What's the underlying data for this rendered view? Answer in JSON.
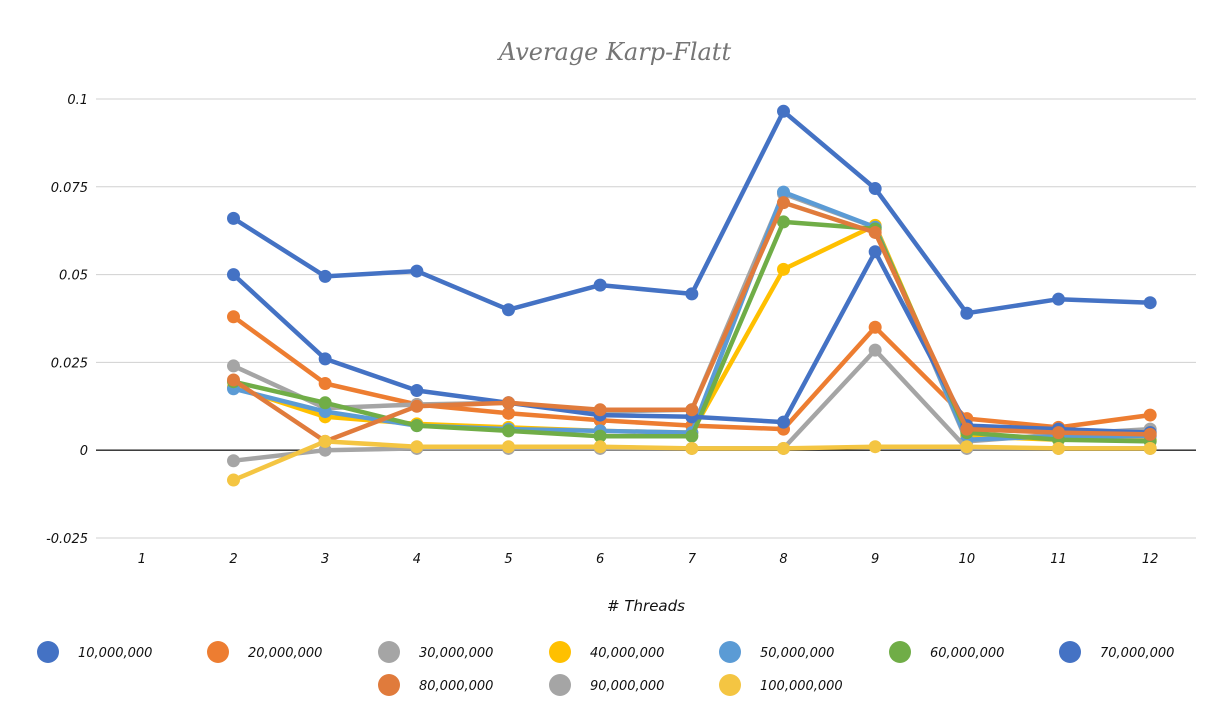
{
  "chart_data": {
    "type": "line",
    "title": "Average Karp-Flatt",
    "xlabel": "# Threads",
    "ylabel": "",
    "categories": [
      "1",
      "2",
      "3",
      "4",
      "5",
      "6",
      "7",
      "8",
      "9",
      "10",
      "11",
      "12"
    ],
    "yticks": [
      "-0.025",
      "0",
      "0.025",
      "0.05",
      "0.075",
      "0.1"
    ],
    "ytick_values": [
      -0.025,
      0,
      0.025,
      0.05,
      0.075,
      0.1
    ],
    "ylim": [
      -0.025,
      0.1
    ],
    "grid": true,
    "legend_position": "bottom",
    "series": [
      {
        "name": "10,000,000",
        "color": "#4472C4",
        "values": [
          null,
          0.066,
          0.0495,
          0.051,
          0.04,
          0.047,
          0.0445,
          0.0965,
          0.0745,
          0.039,
          0.043,
          0.042
        ]
      },
      {
        "name": "20,000,000",
        "color": "#ED7D31",
        "values": [
          null,
          0.038,
          0.019,
          0.013,
          0.0105,
          0.0085,
          0.007,
          0.006,
          0.035,
          0.009,
          0.0065,
          0.01
        ]
      },
      {
        "name": "30,000,000",
        "color": "#A5A5A5",
        "values": [
          null,
          0.024,
          0.012,
          0.013,
          0.0135,
          0.011,
          0.0115,
          0.073,
          0.0635,
          0.0025,
          0.0045,
          0.006
        ]
      },
      {
        "name": "40,000,000",
        "color": "#FFC000",
        "values": [
          null,
          0.018,
          0.0095,
          0.0075,
          0.0065,
          0.0055,
          0.005,
          0.0515,
          0.064,
          0.004,
          0.003,
          0.003
        ]
      },
      {
        "name": "50,000,000",
        "color": "#5B9BD5",
        "values": [
          null,
          0.0175,
          0.011,
          0.007,
          0.006,
          0.0055,
          0.005,
          0.0735,
          0.0635,
          0.003,
          0.004,
          0.004
        ]
      },
      {
        "name": "60,000,000",
        "color": "#70AD47",
        "values": [
          null,
          0.0195,
          0.0135,
          0.007,
          0.0055,
          0.004,
          0.004,
          0.065,
          0.063,
          0.005,
          0.003,
          0.0025
        ]
      },
      {
        "name": "70,000,000",
        "color": "#4472C4",
        "values": [
          null,
          0.05,
          0.026,
          0.017,
          0.0135,
          0.01,
          0.0095,
          0.008,
          0.0565,
          0.007,
          0.006,
          0.005
        ]
      },
      {
        "name": "80,000,000",
        "color": "#E07B3C",
        "values": [
          null,
          0.02,
          0.0025,
          0.0125,
          0.0135,
          0.0115,
          0.0115,
          0.0705,
          0.062,
          0.006,
          0.005,
          0.0045
        ]
      },
      {
        "name": "90,000,000",
        "color": "#A5A5A5",
        "values": [
          null,
          -0.003,
          0.0,
          0.0005,
          0.0005,
          0.0005,
          0.0005,
          0.0005,
          0.0285,
          0.0005,
          0.0005,
          0.0005
        ]
      },
      {
        "name": "100,000,000",
        "color": "#F4C542",
        "values": [
          null,
          -0.0085,
          0.0025,
          0.001,
          0.001,
          0.001,
          0.0005,
          0.0005,
          0.001,
          0.001,
          0.0005,
          0.0005
        ]
      }
    ]
  }
}
